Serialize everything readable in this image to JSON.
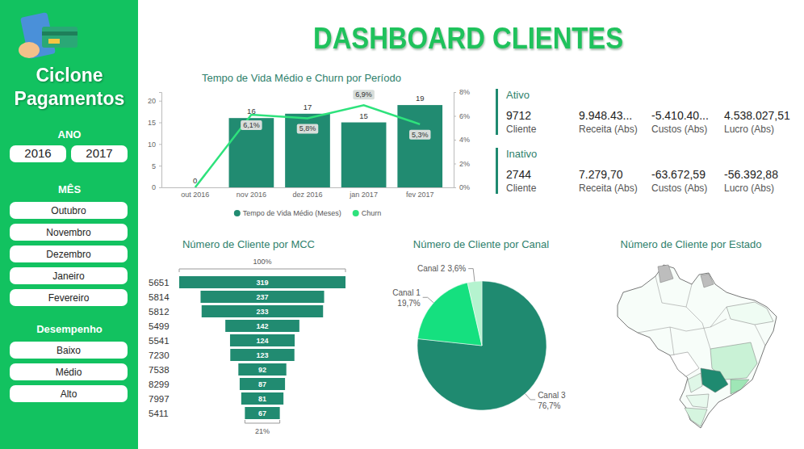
{
  "header": {
    "title": "DASHBOARD CLIENTES"
  },
  "sidebar": {
    "brand": [
      "Ciclone",
      "Pagamentos"
    ],
    "filters": [
      {
        "title": "ANO",
        "options": [
          "2016",
          "2017"
        ]
      },
      {
        "title": "MÊS",
        "options": [
          "Outubro",
          "Novembro",
          "Dezembro",
          "Janeiro",
          "Fevereiro"
        ]
      },
      {
        "title": "Desempenho",
        "options": [
          "Baixo",
          "Médio",
          "Alto"
        ]
      }
    ]
  },
  "kpis": [
    {
      "title": "Ativo",
      "items": [
        {
          "value": "9712",
          "label": "Cliente"
        },
        {
          "value": "9.948.43...",
          "label": "Receita (Abs)"
        },
        {
          "value": "-5.410.40...",
          "label": "Custos (Abs)"
        },
        {
          "value": "4.538.027,51",
          "label": "Lucro (Abs)"
        }
      ]
    },
    {
      "title": "Inativo",
      "items": [
        {
          "value": "2744",
          "label": "Cliente"
        },
        {
          "value": "7.279,70",
          "label": "Receita (Abs)"
        },
        {
          "value": "-63.672,59",
          "label": "Custos (Abs)"
        },
        {
          "value": "-56.392,88",
          "label": "Lucro (Abs)"
        }
      ]
    }
  ],
  "chart_data": [
    {
      "type": "bar",
      "title": "Tempo de Vida Médio e Churn por Período",
      "categories": [
        "out 2016",
        "nov 2016",
        "dez 2016",
        "jan 2017",
        "fev 2017"
      ],
      "series": [
        {
          "name": "Tempo de Vida Médio (Meses)",
          "type": "bar",
          "color": "#218b71",
          "values": [
            0,
            16,
            17,
            15,
            19
          ]
        },
        {
          "name": "Churn",
          "type": "line",
          "color": "#2ee27c",
          "axis": "y2",
          "values": [
            0,
            6.1,
            5.8,
            6.9,
            5.3
          ],
          "value_labels": [
            null,
            "6,1%",
            "5,8%",
            "6,9%",
            "5,3%"
          ]
        }
      ],
      "ylim": [
        0,
        22
      ],
      "yticks": [
        0,
        5,
        10,
        15,
        20
      ],
      "y2lim": [
        0,
        8
      ],
      "y2ticks": [
        {
          "value": 0,
          "label": "0%"
        },
        {
          "value": 2,
          "label": "2%"
        },
        {
          "value": 4,
          "label": "4%"
        },
        {
          "value": 6,
          "label": "6%"
        },
        {
          "value": 8,
          "label": "8%"
        }
      ],
      "grid": false,
      "legend": "bottom",
      "data_labels": true
    },
    {
      "type": "funnel",
      "title": "Número de Cliente por MCC",
      "orientation": "horizontal",
      "categories": [
        "5651",
        "5814",
        "5812",
        "5499",
        "5541",
        "7230",
        "7538",
        "8299",
        "7997",
        "5411"
      ],
      "values": [
        319,
        237,
        233,
        142,
        124,
        123,
        92,
        87,
        81,
        67
      ],
      "color": "#218b71",
      "data_labels": true,
      "tick_labels": "y",
      "annotations": [
        {
          "value": 100,
          "label": "100%"
        },
        {
          "value": 21,
          "label": "21%"
        }
      ]
    },
    {
      "type": "pie",
      "title": "Número de Cliente por Canal",
      "categories": [
        "Canal 3",
        "Canal 1",
        "Canal 2"
      ],
      "values": [
        76.7,
        19.7,
        3.6
      ],
      "value_labels": [
        "76,7%",
        "19,7%",
        "3,6%"
      ],
      "colors": [
        "#1f8a70",
        "#15e07f",
        "#b5f3cf"
      ],
      "data_labels": true
    },
    {
      "type": "map",
      "title": "Número de Cliente por Estado"
    }
  ]
}
